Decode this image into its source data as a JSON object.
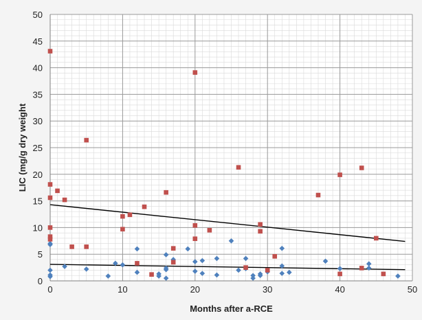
{
  "chart_data": {
    "type": "scatter",
    "title": "",
    "xlabel": "Months after a-RCE",
    "ylabel": "LIC (mg/g dry weight",
    "xlim": [
      0,
      50
    ],
    "ylim": [
      0,
      50
    ],
    "x_ticks": [
      0,
      10,
      20,
      30,
      40,
      50
    ],
    "y_ticks": [
      0,
      5,
      10,
      15,
      20,
      25,
      30,
      35,
      40,
      45,
      50
    ],
    "grid": true,
    "legend": "none",
    "colors": {
      "series1": "#4f81bd",
      "series2": "#c0504d",
      "trend": "#000000"
    },
    "series": [
      {
        "marker": "diamond",
        "color": "#4f81bd",
        "points": [
          [
            0,
            7.0
          ],
          [
            0,
            6.8
          ],
          [
            0,
            2.0
          ],
          [
            0,
            1.1
          ],
          [
            0,
            0.8
          ],
          [
            2,
            2.7
          ],
          [
            5,
            2.2
          ],
          [
            8,
            0.9
          ],
          [
            9,
            3.3
          ],
          [
            10,
            3.0
          ],
          [
            12,
            6.0
          ],
          [
            12,
            1.6
          ],
          [
            15,
            1.3
          ],
          [
            15,
            0.9
          ],
          [
            16,
            4.9
          ],
          [
            16,
            2.4
          ],
          [
            16,
            2.1
          ],
          [
            16,
            0.5
          ],
          [
            17,
            4.0
          ],
          [
            19,
            6.0
          ],
          [
            20,
            3.6
          ],
          [
            20,
            1.8
          ],
          [
            21,
            3.8
          ],
          [
            21,
            1.4
          ],
          [
            23,
            4.2
          ],
          [
            23,
            1.1
          ],
          [
            25,
            7.5
          ],
          [
            26,
            2.0
          ],
          [
            27,
            4.2
          ],
          [
            27,
            2.3
          ],
          [
            28,
            1.0
          ],
          [
            28,
            0.5
          ],
          [
            29,
            1.3
          ],
          [
            29,
            1.0
          ],
          [
            30,
            1.7
          ],
          [
            32,
            6.1
          ],
          [
            32,
            2.8
          ],
          [
            32,
            1.4
          ],
          [
            33,
            1.6
          ],
          [
            38,
            3.7
          ],
          [
            40,
            2.3
          ],
          [
            44,
            3.2
          ],
          [
            44,
            2.4
          ],
          [
            48,
            0.9
          ]
        ]
      },
      {
        "marker": "square",
        "color": "#c0504d",
        "points": [
          [
            0,
            43.1
          ],
          [
            0,
            18.1
          ],
          [
            0,
            15.6
          ],
          [
            0,
            10.0
          ],
          [
            0,
            8.3
          ],
          [
            0,
            7.8
          ],
          [
            1,
            16.9
          ],
          [
            2,
            15.2
          ],
          [
            3,
            6.4
          ],
          [
            5,
            26.4
          ],
          [
            5,
            6.4
          ],
          [
            10,
            12.1
          ],
          [
            10,
            9.7
          ],
          [
            11,
            12.4
          ],
          [
            12,
            3.3
          ],
          [
            13,
            13.9
          ],
          [
            14,
            1.2
          ],
          [
            16,
            16.6
          ],
          [
            17,
            6.1
          ],
          [
            17,
            3.5
          ],
          [
            20,
            39.1
          ],
          [
            20,
            10.4
          ],
          [
            20,
            7.9
          ],
          [
            22,
            9.5
          ],
          [
            26,
            21.3
          ],
          [
            27,
            2.5
          ],
          [
            29,
            10.6
          ],
          [
            29,
            9.3
          ],
          [
            30,
            2.0
          ],
          [
            31,
            4.6
          ],
          [
            37,
            16.1
          ],
          [
            40,
            19.9
          ],
          [
            40,
            1.3
          ],
          [
            43,
            21.2
          ],
          [
            43,
            2.4
          ],
          [
            45,
            8.0
          ],
          [
            46,
            1.3
          ]
        ]
      }
    ],
    "trendlines": [
      {
        "x": [
          0,
          49
        ],
        "y": [
          3.1,
          2.1
        ]
      },
      {
        "x": [
          0,
          49
        ],
        "y": [
          14.3,
          7.4
        ]
      }
    ]
  }
}
